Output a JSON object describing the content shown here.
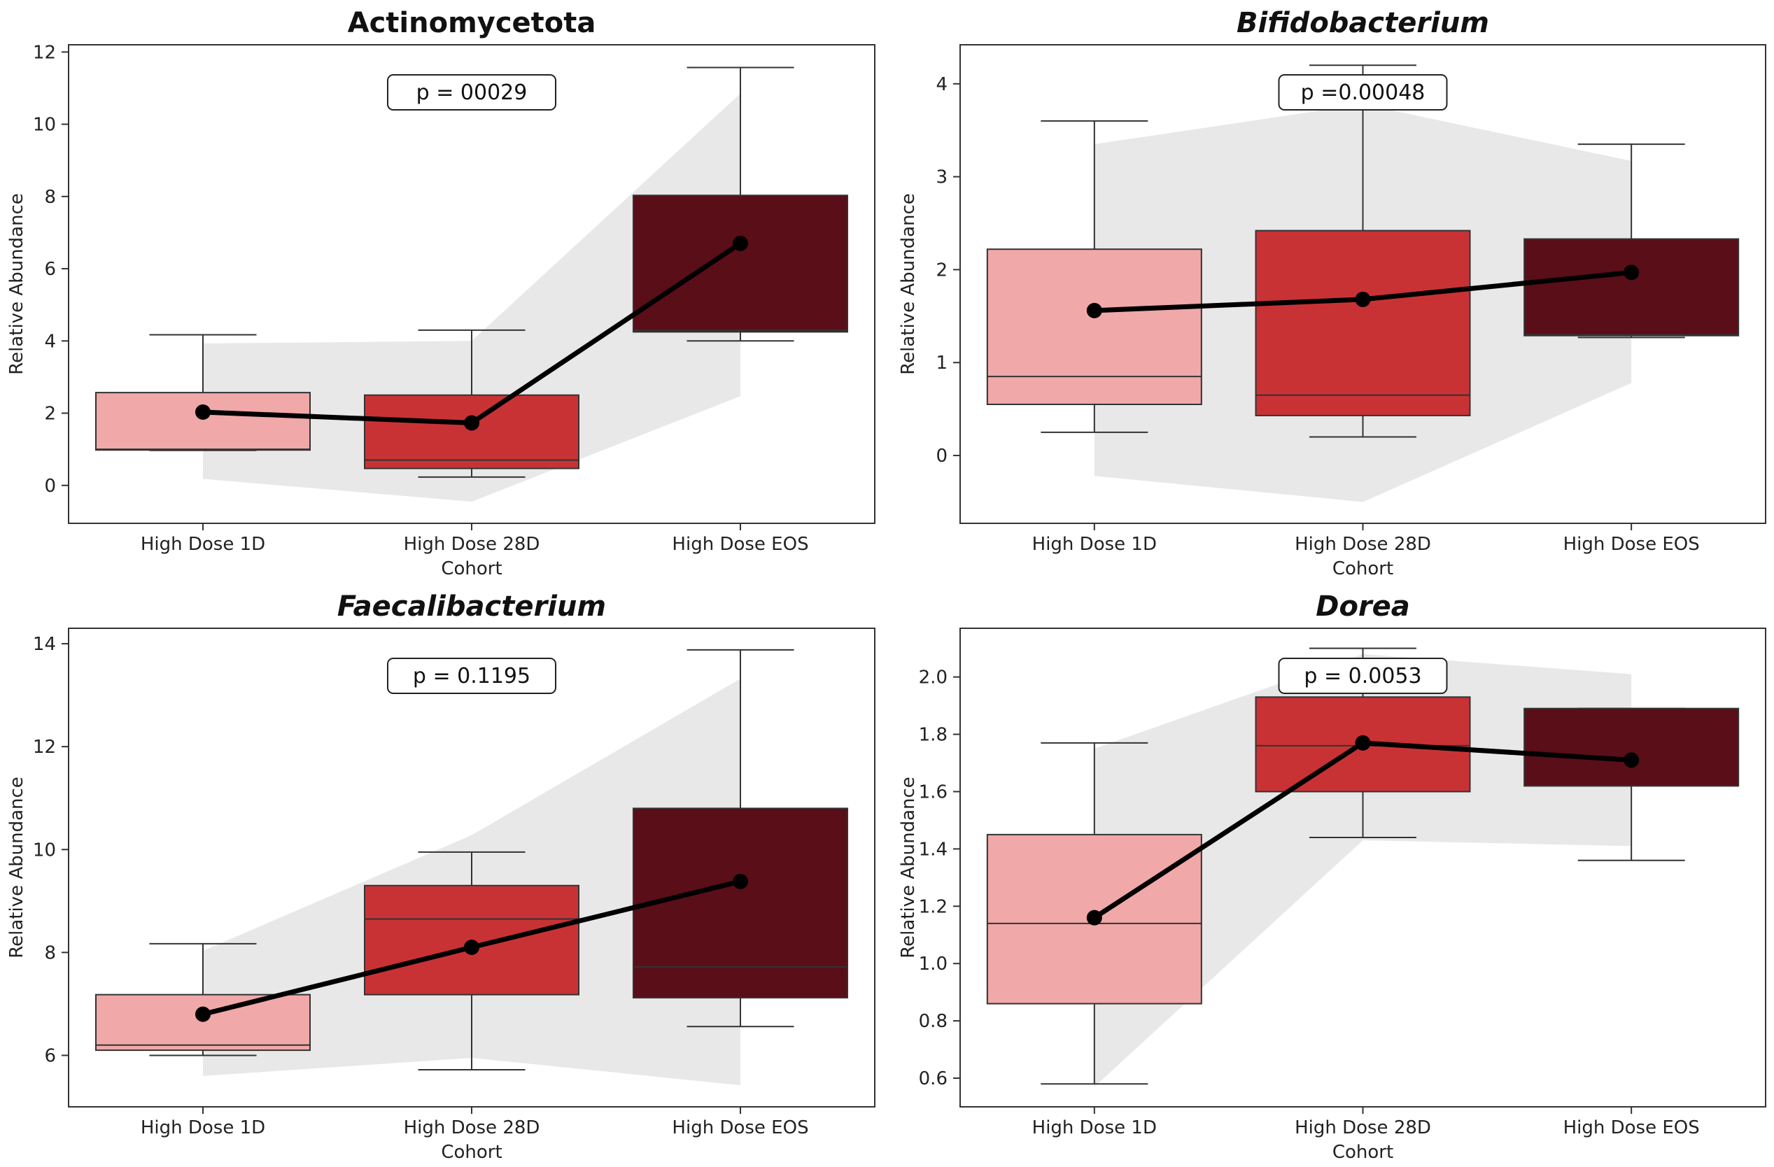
{
  "chart_data": [
    {
      "type": "box",
      "title": "Actinomycetota",
      "title_style": "bold",
      "xlabel": "Cohort",
      "ylabel": "Relative Abundance",
      "ylim": [
        -1.05,
        12.2
      ],
      "yticks": [
        0,
        2,
        4,
        6,
        8,
        10,
        12
      ],
      "p_label": "p = 00029",
      "categories": [
        "High Dose 1D",
        "High Dose 28D",
        "High Dose EOS"
      ],
      "box_colors": [
        "#f0a8a8",
        "#c93235",
        "#5a0e18"
      ],
      "boxes": [
        {
          "whisker_low": 0.97,
          "q1": 0.98,
          "median": 1.0,
          "q3": 2.57,
          "whisker_high": 4.17
        },
        {
          "whisker_low": 0.23,
          "q1": 0.47,
          "median": 0.7,
          "q3": 2.5,
          "whisker_high": 4.3
        },
        {
          "whisker_low": 4.0,
          "q1": 4.25,
          "median": 4.3,
          "q3": 8.03,
          "whisker_high": 11.57
        }
      ],
      "mean_line": [
        2.03,
        1.73,
        6.7
      ],
      "band_low": [
        0.18,
        -0.45,
        2.47
      ],
      "band_high": [
        3.93,
        4.0,
        10.85
      ]
    },
    {
      "type": "box",
      "title": "Bifidobacterium",
      "title_style": "bold-italic",
      "xlabel": "Cohort",
      "ylabel": "Relative Abundance",
      "ylim": [
        -0.73,
        4.42
      ],
      "yticks": [
        0,
        1,
        2,
        3,
        4
      ],
      "p_label": "p =0.00048",
      "categories": [
        "High Dose 1D",
        "High Dose 28D",
        "High Dose EOS"
      ],
      "box_colors": [
        "#f0a8a8",
        "#c93235",
        "#5a0e18"
      ],
      "boxes": [
        {
          "whisker_low": 0.25,
          "q1": 0.55,
          "median": 0.85,
          "q3": 2.22,
          "whisker_high": 3.6
        },
        {
          "whisker_low": 0.2,
          "q1": 0.43,
          "median": 0.65,
          "q3": 2.42,
          "whisker_high": 4.2
        },
        {
          "whisker_low": 1.27,
          "q1": 1.29,
          "median": 1.3,
          "q3": 2.33,
          "whisker_high": 3.35
        }
      ],
      "mean_line": [
        1.56,
        1.68,
        1.97
      ],
      "band_low": [
        -0.22,
        -0.5,
        0.78
      ],
      "band_high": [
        3.35,
        3.78,
        3.17
      ]
    },
    {
      "type": "box",
      "title": "Faecalibacterium",
      "title_style": "bold-italic",
      "xlabel": "Cohort",
      "ylabel": "Relative Abundance",
      "ylim": [
        5.0,
        14.3
      ],
      "yticks": [
        6,
        8,
        10,
        12,
        14
      ],
      "p_label": "p = 0.1195",
      "categories": [
        "High Dose 1D",
        "High Dose 28D",
        "High Dose EOS"
      ],
      "box_colors": [
        "#f0a8a8",
        "#c93235",
        "#5a0e18"
      ],
      "boxes": [
        {
          "whisker_low": 6.0,
          "q1": 6.1,
          "median": 6.2,
          "q3": 7.18,
          "whisker_high": 8.17
        },
        {
          "whisker_low": 5.72,
          "q1": 7.18,
          "median": 8.65,
          "q3": 9.3,
          "whisker_high": 9.95
        },
        {
          "whisker_low": 6.56,
          "q1": 7.12,
          "median": 7.72,
          "q3": 10.8,
          "whisker_high": 13.88
        }
      ],
      "mean_line": [
        6.8,
        8.1,
        9.38
      ],
      "band_low": [
        5.6,
        5.95,
        5.42
      ],
      "band_high": [
        8.03,
        10.28,
        13.32
      ]
    },
    {
      "type": "box",
      "title": "Dorea",
      "title_style": "bold-italic",
      "xlabel": "Cohort",
      "ylabel": "Relative Abundance",
      "ylim": [
        0.5,
        2.17
      ],
      "yticks": [
        0.6,
        0.8,
        1.0,
        1.2,
        1.4,
        1.6,
        1.8,
        2.0
      ],
      "tick_labels": [
        "0.6",
        "0.8",
        "1.0",
        "1.2",
        "1.4",
        "1.6",
        "1.8",
        "2.0"
      ],
      "p_label": "p = 0.0053",
      "categories": [
        "High Dose 1D",
        "High Dose 28D",
        "High Dose EOS"
      ],
      "box_colors": [
        "#f0a8a8",
        "#c93235",
        "#5a0e18"
      ],
      "boxes": [
        {
          "whisker_low": 0.58,
          "q1": 0.86,
          "median": 1.14,
          "q3": 1.45,
          "whisker_high": 1.77
        },
        {
          "whisker_low": 1.44,
          "q1": 1.6,
          "median": 1.76,
          "q3": 1.93,
          "whisker_high": 2.1
        },
        {
          "whisker_low": 1.36,
          "q1": 1.62,
          "median": 1.62,
          "q3": 1.89,
          "whisker_high": 1.89
        }
      ],
      "mean_line": [
        1.16,
        1.77,
        1.71
      ],
      "band_low": [
        0.57,
        1.43,
        1.41
      ],
      "band_high": [
        1.75,
        2.08,
        2.01
      ]
    }
  ]
}
